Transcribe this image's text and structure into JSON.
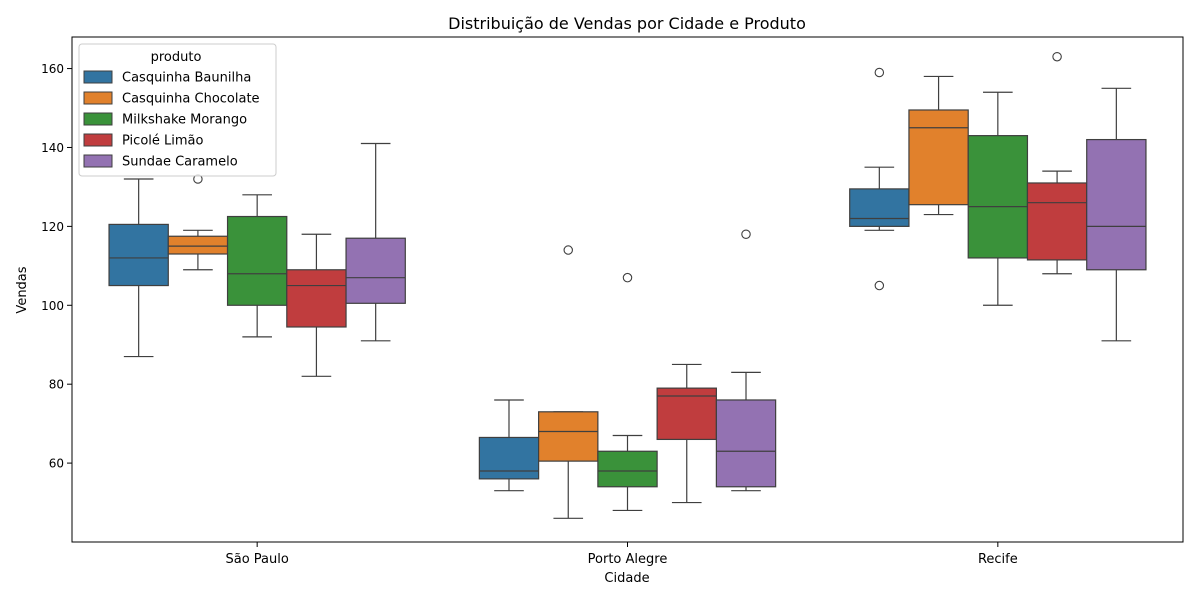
{
  "chart_data": {
    "type": "boxplot",
    "title": "Distribuição de Vendas por Cidade e Produto",
    "xlabel": "Cidade",
    "ylabel": "Vendas",
    "ylim": [
      40,
      168
    ],
    "yticks": [
      60,
      80,
      100,
      120,
      140,
      160
    ],
    "categories": [
      "São Paulo",
      "Porto Alegre",
      "Recife"
    ],
    "legend": {
      "title": "produto",
      "position": "top-left"
    },
    "series": [
      {
        "name": "Casquinha Baunilha",
        "color": "#3274a1",
        "boxes": [
          {
            "min": 87,
            "q1": 105,
            "median": 112,
            "q3": 120.5,
            "max": 132,
            "outliers": []
          },
          {
            "min": 53,
            "q1": 56,
            "median": 58,
            "q3": 66.5,
            "max": 76,
            "outliers": []
          },
          {
            "min": 119,
            "q1": 120,
            "median": 122,
            "q3": 129.5,
            "max": 135,
            "outliers": [
              105,
              159
            ]
          }
        ]
      },
      {
        "name": "Casquinha Chocolate",
        "color": "#e1812c",
        "boxes": [
          {
            "min": 109,
            "q1": 113,
            "median": 115,
            "q3": 117.5,
            "max": 119,
            "outliers": [
              132
            ]
          },
          {
            "min": 46,
            "q1": 60.5,
            "median": 68,
            "q3": 73,
            "max": 73,
            "outliers": [
              114
            ]
          },
          {
            "min": 123,
            "q1": 125.5,
            "median": 145,
            "q3": 149.5,
            "max": 158,
            "outliers": []
          }
        ]
      },
      {
        "name": "Milkshake Morango",
        "color": "#3a923a",
        "boxes": [
          {
            "min": 92,
            "q1": 100,
            "median": 108,
            "q3": 122.5,
            "max": 128,
            "outliers": []
          },
          {
            "min": 48,
            "q1": 54,
            "median": 58,
            "q3": 63,
            "max": 67,
            "outliers": [
              107
            ]
          },
          {
            "min": 100,
            "q1": 112,
            "median": 125,
            "q3": 143,
            "max": 154,
            "outliers": []
          }
        ]
      },
      {
        "name": "Picolé Limão",
        "color": "#c03d3e",
        "boxes": [
          {
            "min": 82,
            "q1": 94.5,
            "median": 105,
            "q3": 109,
            "max": 118,
            "outliers": []
          },
          {
            "min": 50,
            "q1": 66,
            "median": 77,
            "q3": 79,
            "max": 85,
            "outliers": []
          },
          {
            "min": 108,
            "q1": 111.5,
            "median": 126,
            "q3": 131,
            "max": 134,
            "outliers": [
              163
            ]
          }
        ]
      },
      {
        "name": "Sundae Caramelo",
        "color": "#9372b2",
        "boxes": [
          {
            "min": 91,
            "q1": 100.5,
            "median": 107,
            "q3": 117,
            "max": 141,
            "outliers": []
          },
          {
            "min": 53,
            "q1": 54,
            "median": 63,
            "q3": 76,
            "max": 83,
            "outliers": [
              118
            ]
          },
          {
            "min": 91,
            "q1": 109,
            "median": 120,
            "q3": 142,
            "max": 155,
            "outliers": []
          }
        ]
      }
    ]
  }
}
